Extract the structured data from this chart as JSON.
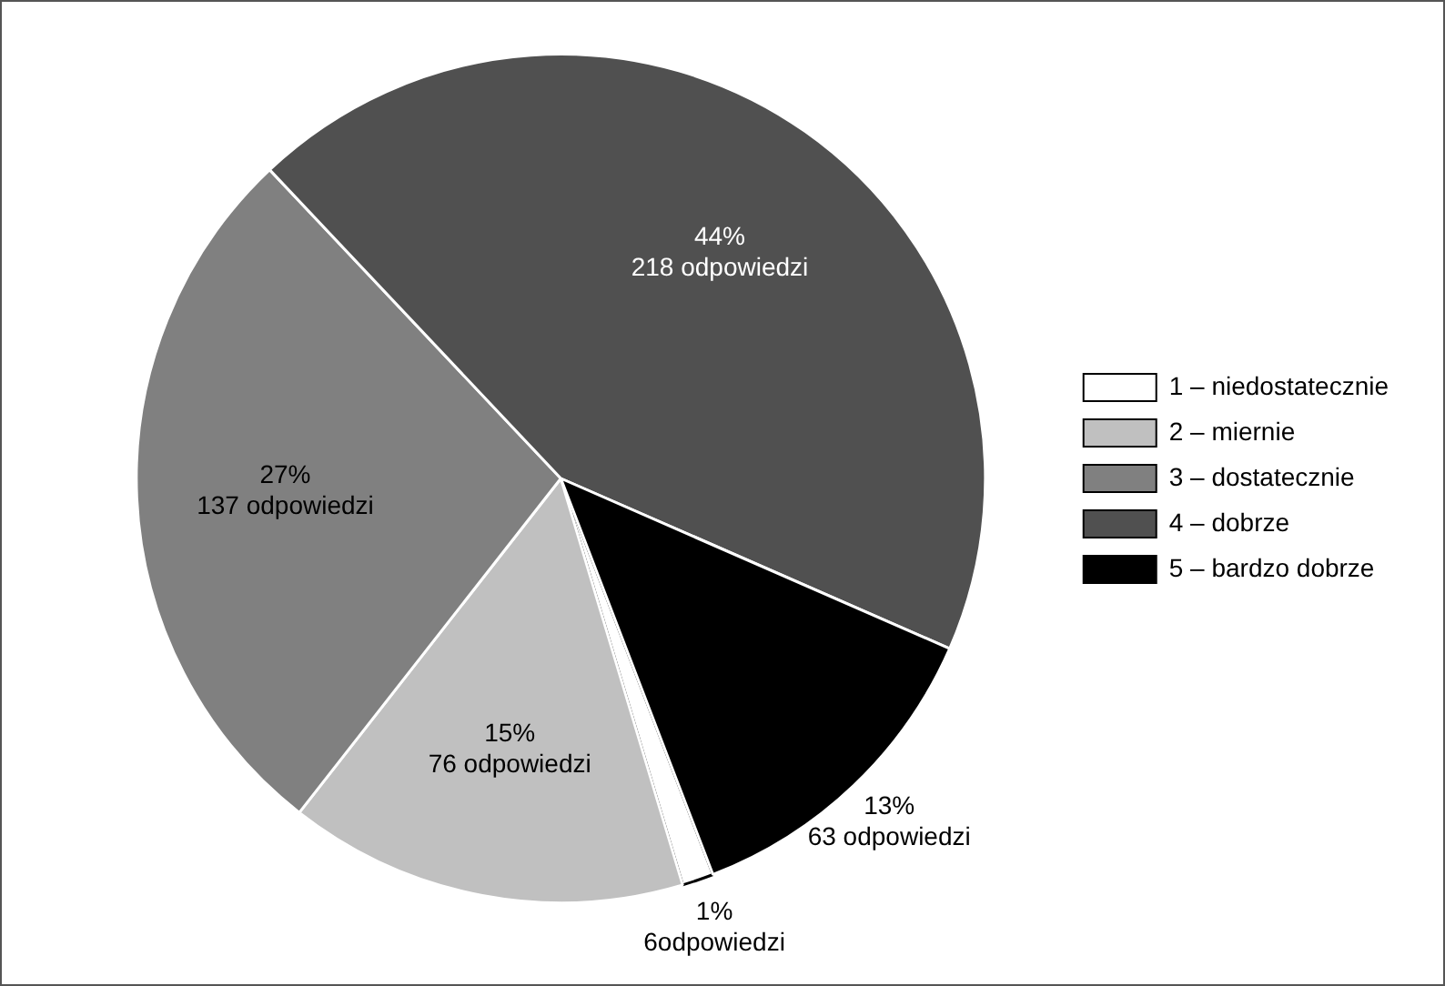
{
  "chart_data": {
    "type": "pie",
    "categories": [
      "1 – niedostatecznie",
      "2 – miernie",
      "3 – dostatecznie",
      "4 – dobrze",
      "5 – bardzo dobrze"
    ],
    "values": [
      6,
      76,
      137,
      218,
      63
    ],
    "colors": [
      "#ffffff",
      "#c0c0c0",
      "#808080",
      "#505050",
      "#000000"
    ],
    "value_labels": [
      "1%\n6odpowiedzi",
      "15%\n76 odpowiedzi",
      "27%\n137 odpowiedzi",
      "44%\n218 odpowiedzi",
      "13%\n63 odpowiedzi"
    ],
    "legend": "right"
  }
}
